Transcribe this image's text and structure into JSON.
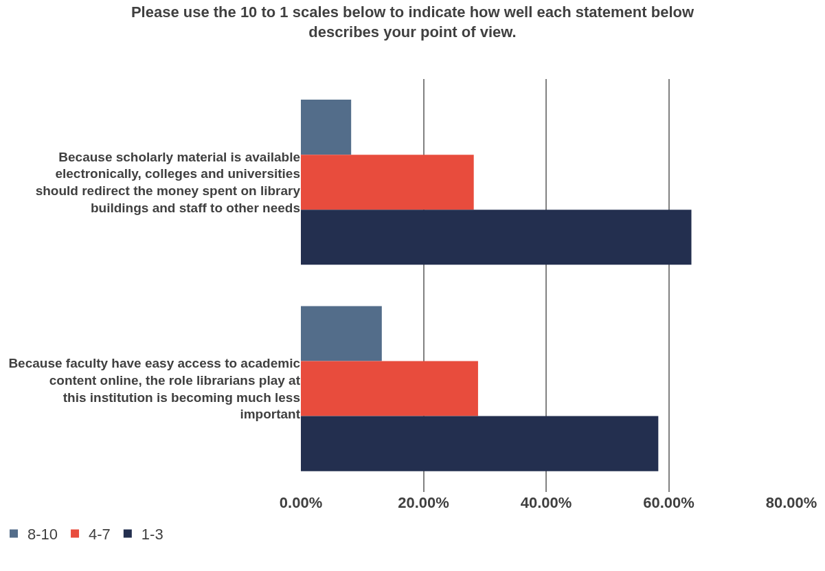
{
  "chart_data": {
    "type": "bar",
    "orientation": "horizontal",
    "title": "Please use the 10 to 1 scales below to indicate how well each statement below describes your point of view.",
    "categories": [
      "Because scholarly material is available electronically, colleges and universities should redirect the money spent on library buildings and staff to other needs",
      "Because faculty have easy access to academic content online, the role librarians play at this institution is becoming much less important"
    ],
    "series": [
      {
        "name": "8-10",
        "color": "#536d8a",
        "values": [
          8.2,
          13.2
        ]
      },
      {
        "name": "4-7",
        "color": "#e84c3d",
        "values": [
          28.2,
          28.9
        ]
      },
      {
        "name": "1-3",
        "color": "#232f4f",
        "values": [
          63.7,
          58.3
        ]
      }
    ],
    "xlim": [
      0,
      80
    ],
    "xticks": [
      {
        "value": 0,
        "label": "0.00%"
      },
      {
        "value": 20,
        "label": "20.00%"
      },
      {
        "value": 40,
        "label": "40.00%"
      },
      {
        "value": 60,
        "label": "60.00%"
      },
      {
        "value": 80,
        "label": "80.00%"
      }
    ],
    "grid": "x",
    "legend": "bottom left"
  }
}
